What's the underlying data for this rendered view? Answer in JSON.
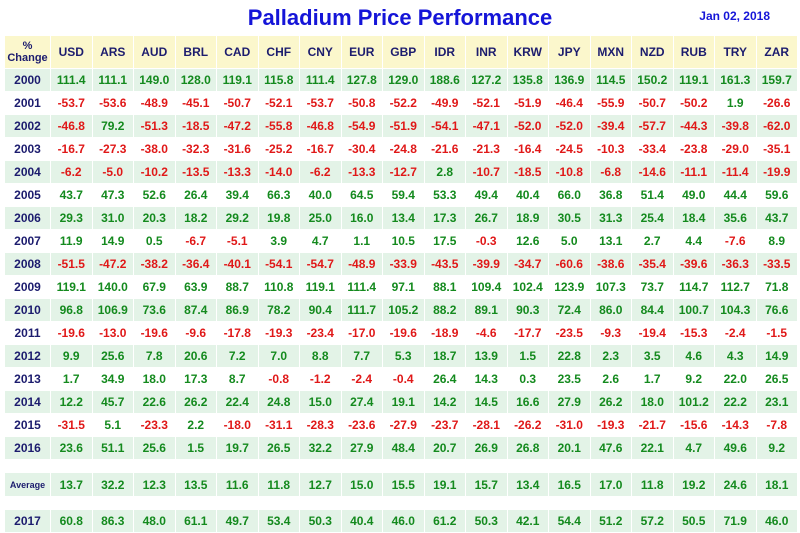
{
  "title": "Palladium Price Performance",
  "date": "Jan 02, 2018",
  "corner": [
    "%",
    "Change"
  ],
  "currencies": [
    "USD",
    "ARS",
    "AUD",
    "BRL",
    "CAD",
    "CHF",
    "CNY",
    "EUR",
    "GBP",
    "IDR",
    "INR",
    "KRW",
    "JPY",
    "MXN",
    "NZD",
    "RUB",
    "TRY",
    "ZAR"
  ],
  "rows": [
    {
      "year": "2000",
      "values": [
        "111.4",
        "111.1",
        "149.0",
        "128.0",
        "119.1",
        "115.8",
        "111.4",
        "127.8",
        "129.0",
        "188.6",
        "127.2",
        "135.8",
        "136.9",
        "114.5",
        "150.2",
        "119.1",
        "161.3",
        "159.7"
      ]
    },
    {
      "year": "2001",
      "values": [
        "-53.7",
        "-53.6",
        "-48.9",
        "-45.1",
        "-50.7",
        "-52.1",
        "-53.7",
        "-50.8",
        "-52.2",
        "-49.9",
        "-52.1",
        "-51.9",
        "-46.4",
        "-55.9",
        "-50.7",
        "-50.2",
        "1.9",
        "-26.6"
      ]
    },
    {
      "year": "2002",
      "values": [
        "-46.8",
        "79.2",
        "-51.3",
        "-18.5",
        "-47.2",
        "-55.8",
        "-46.8",
        "-54.9",
        "-51.9",
        "-54.1",
        "-47.1",
        "-52.0",
        "-52.0",
        "-39.4",
        "-57.7",
        "-44.3",
        "-39.8",
        "-62.0"
      ]
    },
    {
      "year": "2003",
      "values": [
        "-16.7",
        "-27.3",
        "-38.0",
        "-32.3",
        "-31.6",
        "-25.2",
        "-16.7",
        "-30.4",
        "-24.8",
        "-21.6",
        "-21.3",
        "-16.4",
        "-24.5",
        "-10.3",
        "-33.4",
        "-23.8",
        "-29.0",
        "-35.1"
      ]
    },
    {
      "year": "2004",
      "values": [
        "-6.2",
        "-5.0",
        "-10.2",
        "-13.5",
        "-13.3",
        "-14.0",
        "-6.2",
        "-13.3",
        "-12.7",
        "2.8",
        "-10.7",
        "-18.5",
        "-10.8",
        "-6.8",
        "-14.6",
        "-11.1",
        "-11.4",
        "-19.9"
      ]
    },
    {
      "year": "2005",
      "values": [
        "43.7",
        "47.3",
        "52.6",
        "26.4",
        "39.4",
        "66.3",
        "40.0",
        "64.5",
        "59.4",
        "53.3",
        "49.4",
        "40.4",
        "66.0",
        "36.8",
        "51.4",
        "49.0",
        "44.4",
        "59.6"
      ]
    },
    {
      "year": "2006",
      "values": [
        "29.3",
        "31.0",
        "20.3",
        "18.2",
        "29.2",
        "19.8",
        "25.0",
        "16.0",
        "13.4",
        "17.3",
        "26.7",
        "18.9",
        "30.5",
        "31.3",
        "25.4",
        "18.4",
        "35.6",
        "43.7"
      ]
    },
    {
      "year": "2007",
      "values": [
        "11.9",
        "14.9",
        "0.5",
        "-6.7",
        "-5.1",
        "3.9",
        "4.7",
        "1.1",
        "10.5",
        "17.5",
        "-0.3",
        "12.6",
        "5.0",
        "13.1",
        "2.7",
        "4.4",
        "-7.6",
        "8.9"
      ]
    },
    {
      "year": "2008",
      "values": [
        "-51.5",
        "-47.2",
        "-38.2",
        "-36.4",
        "-40.1",
        "-54.1",
        "-54.7",
        "-48.9",
        "-33.9",
        "-43.5",
        "-39.9",
        "-34.7",
        "-60.6",
        "-38.6",
        "-35.4",
        "-39.6",
        "-36.3",
        "-33.5"
      ]
    },
    {
      "year": "2009",
      "values": [
        "119.1",
        "140.0",
        "67.9",
        "63.9",
        "88.7",
        "110.8",
        "119.1",
        "111.4",
        "97.1",
        "88.1",
        "109.4",
        "102.4",
        "123.9",
        "107.3",
        "73.7",
        "114.7",
        "112.7",
        "71.8"
      ]
    },
    {
      "year": "2010",
      "values": [
        "96.8",
        "106.9",
        "73.6",
        "87.4",
        "86.9",
        "78.2",
        "90.4",
        "111.7",
        "105.2",
        "88.2",
        "89.1",
        "90.3",
        "72.4",
        "86.0",
        "84.4",
        "100.7",
        "104.3",
        "76.6"
      ]
    },
    {
      "year": "2011",
      "values": [
        "-19.6",
        "-13.0",
        "-19.6",
        "-9.6",
        "-17.8",
        "-19.3",
        "-23.4",
        "-17.0",
        "-19.6",
        "-18.9",
        "-4.6",
        "-17.7",
        "-23.5",
        "-9.3",
        "-19.4",
        "-15.3",
        "-2.4",
        "-1.5"
      ]
    },
    {
      "year": "2012",
      "values": [
        "9.9",
        "25.6",
        "7.8",
        "20.6",
        "7.2",
        "7.0",
        "8.8",
        "7.7",
        "5.3",
        "18.7",
        "13.9",
        "1.5",
        "22.8",
        "2.3",
        "3.5",
        "4.6",
        "4.3",
        "14.9"
      ]
    },
    {
      "year": "2013",
      "values": [
        "1.7",
        "34.9",
        "18.0",
        "17.3",
        "8.7",
        "-0.8",
        "-1.2",
        "-2.4",
        "-0.4",
        "26.4",
        "14.3",
        "0.3",
        "23.5",
        "2.6",
        "1.7",
        "9.2",
        "22.0",
        "26.5"
      ]
    },
    {
      "year": "2014",
      "values": [
        "12.2",
        "45.7",
        "22.6",
        "26.2",
        "22.4",
        "24.8",
        "15.0",
        "27.4",
        "19.1",
        "14.2",
        "14.5",
        "16.6",
        "27.9",
        "26.2",
        "18.0",
        "101.2",
        "22.2",
        "23.1"
      ]
    },
    {
      "year": "2015",
      "values": [
        "-31.5",
        "5.1",
        "-23.3",
        "2.2",
        "-18.0",
        "-31.1",
        "-28.3",
        "-23.6",
        "-27.9",
        "-23.7",
        "-28.1",
        "-26.2",
        "-31.0",
        "-19.3",
        "-21.7",
        "-15.6",
        "-14.3",
        "-7.8"
      ]
    },
    {
      "year": "2016",
      "values": [
        "23.6",
        "51.1",
        "25.6",
        "1.5",
        "19.7",
        "26.5",
        "32.2",
        "27.9",
        "48.4",
        "20.7",
        "26.9",
        "26.8",
        "20.1",
        "47.6",
        "22.1",
        "4.7",
        "49.6",
        "9.2"
      ]
    }
  ],
  "average": {
    "label": "Average",
    "values": [
      "13.7",
      "32.2",
      "12.3",
      "13.5",
      "11.6",
      "11.8",
      "12.7",
      "15.0",
      "15.5",
      "19.1",
      "15.7",
      "13.4",
      "16.5",
      "17.0",
      "11.8",
      "19.2",
      "24.6",
      "18.1"
    ]
  },
  "latest": {
    "year": "2017",
    "values": [
      "60.8",
      "86.3",
      "48.0",
      "61.1",
      "49.7",
      "53.4",
      "50.3",
      "40.4",
      "46.0",
      "61.2",
      "50.3",
      "42.1",
      "54.4",
      "51.2",
      "57.2",
      "50.5",
      "71.9",
      "46.0"
    ]
  },
  "colors": {
    "title": "#1515d8",
    "header_bg": "#fbf7cc",
    "band_bg": "#e3f3e7",
    "positive": "#148a1e",
    "negative": "#e01818",
    "year_text": "#1c1c6e"
  }
}
